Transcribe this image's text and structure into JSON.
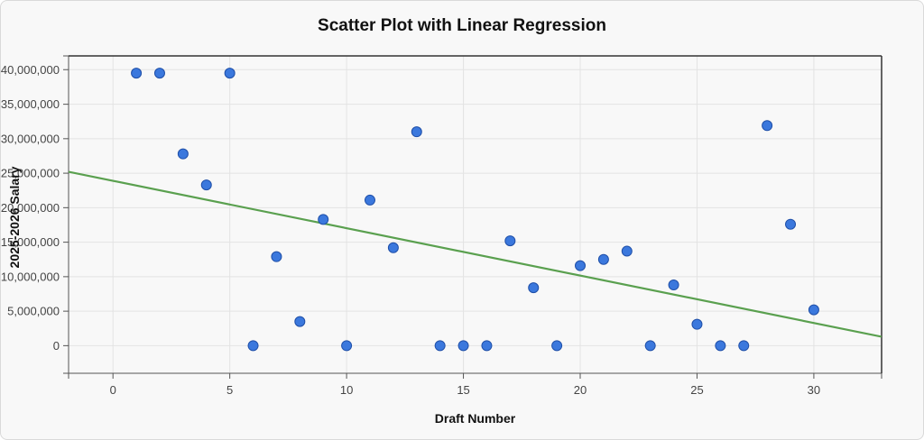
{
  "chart_data": {
    "type": "scatter",
    "title": "Scatter Plot with Linear Regression",
    "xlabel": "Draft Number",
    "ylabel": "2025-2026 Salary",
    "xlim": [
      -1.9,
      32.9
    ],
    "ylim": [
      -4000000,
      42000000
    ],
    "x_ticks": [
      0,
      5,
      10,
      15,
      20,
      25,
      30
    ],
    "x_tick_labels": [
      "0",
      "5",
      "10",
      "15",
      "20",
      "25",
      "30"
    ],
    "y_ticks": [
      0,
      5000000,
      10000000,
      15000000,
      20000000,
      25000000,
      30000000,
      35000000,
      40000000
    ],
    "y_tick_labels": [
      "0",
      "5,000,000",
      "10,000,000",
      "15,000,000",
      "20,000,000",
      "25,000,000",
      "30,000,000",
      "35,000,000",
      "40,000,000"
    ],
    "grid": true,
    "series": [
      {
        "type": "scatter",
        "x": [
          1,
          2,
          3,
          4,
          5,
          6,
          7,
          8,
          9,
          10,
          11,
          12,
          13,
          14,
          15,
          16,
          17,
          18,
          19,
          20,
          21,
          22,
          23,
          24,
          25,
          26,
          27,
          28,
          29,
          30
        ],
        "y": [
          39500000,
          39500000,
          27800000,
          23300000,
          39500000,
          0,
          12900000,
          3500000,
          18300000,
          0,
          21100000,
          14200000,
          31000000,
          0,
          0,
          0,
          15200000,
          8400000,
          0,
          11600000,
          12500000,
          13700000,
          0,
          8800000,
          3100000,
          0,
          0,
          31900000,
          17600000,
          5200000
        ]
      },
      {
        "type": "line",
        "x": [
          -1.9,
          32.9
        ],
        "y": [
          25200000,
          1300000
        ]
      }
    ],
    "colors": {
      "point_fill": "#3b78dd",
      "point_stroke": "#1f4fa8",
      "regression_line": "#5aa04f",
      "grid": "#e3e3e3",
      "axis": "#555555"
    }
  }
}
